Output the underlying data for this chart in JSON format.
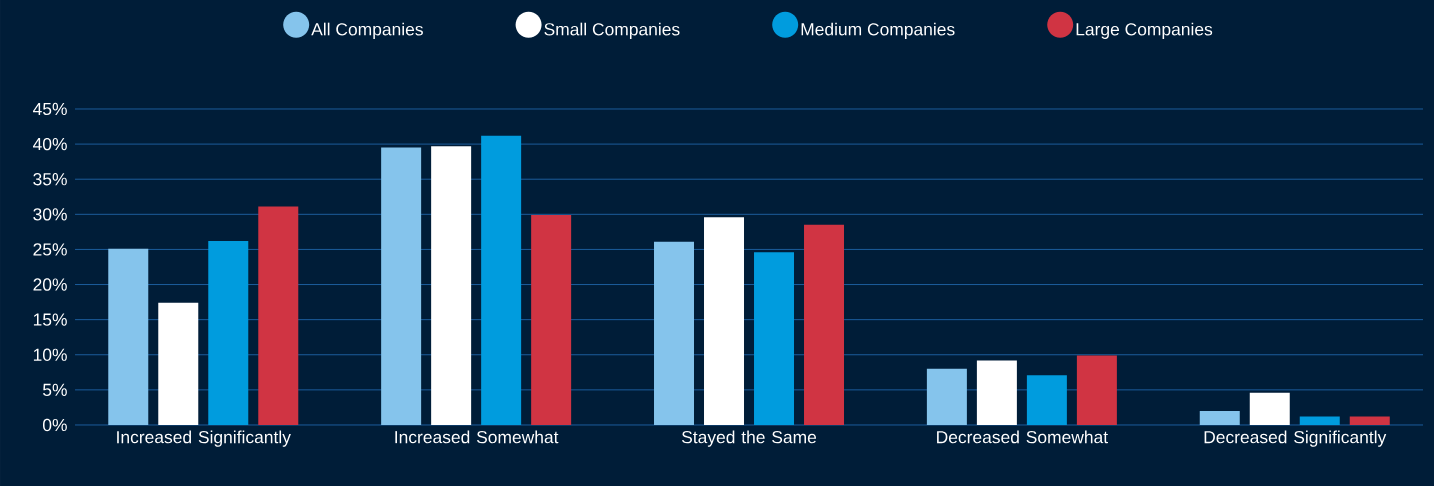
{
  "chart_data": {
    "type": "bar",
    "categories": [
      "Increased Significantly",
      "Increased Somewhat",
      "Stayed the Same",
      "Decreased Somewhat",
      "Decreased Significantly"
    ],
    "series": [
      {
        "name": "All Companies",
        "color": "#85c4ec",
        "values": [
          25.1,
          39.5,
          26.1,
          8.0,
          2.0
        ]
      },
      {
        "name": "Small Companies",
        "color": "#ffffff",
        "values": [
          17.4,
          39.7,
          29.6,
          9.2,
          4.6
        ]
      },
      {
        "name": "Medium Companies",
        "color": "#009cde",
        "values": [
          26.2,
          41.2,
          24.6,
          7.1,
          1.2
        ]
      },
      {
        "name": "Large Companies",
        "color": "#d03443",
        "values": [
          31.1,
          29.9,
          28.5,
          9.9,
          1.2
        ]
      }
    ],
    "ylim": [
      0,
      45
    ],
    "yticks": [
      {
        "value": 0,
        "label": "0%"
      },
      {
        "value": 5,
        "label": "5%"
      },
      {
        "value": 10,
        "label": "10%"
      },
      {
        "value": 15,
        "label": "15%"
      },
      {
        "value": 20,
        "label": "20%"
      },
      {
        "value": 25,
        "label": "25%"
      },
      {
        "value": 30,
        "label": "30%"
      },
      {
        "value": 35,
        "label": "35%"
      },
      {
        "value": 40,
        "label": "40%"
      },
      {
        "value": 45,
        "label": "45%"
      }
    ],
    "grid": "y",
    "legend": "top"
  }
}
